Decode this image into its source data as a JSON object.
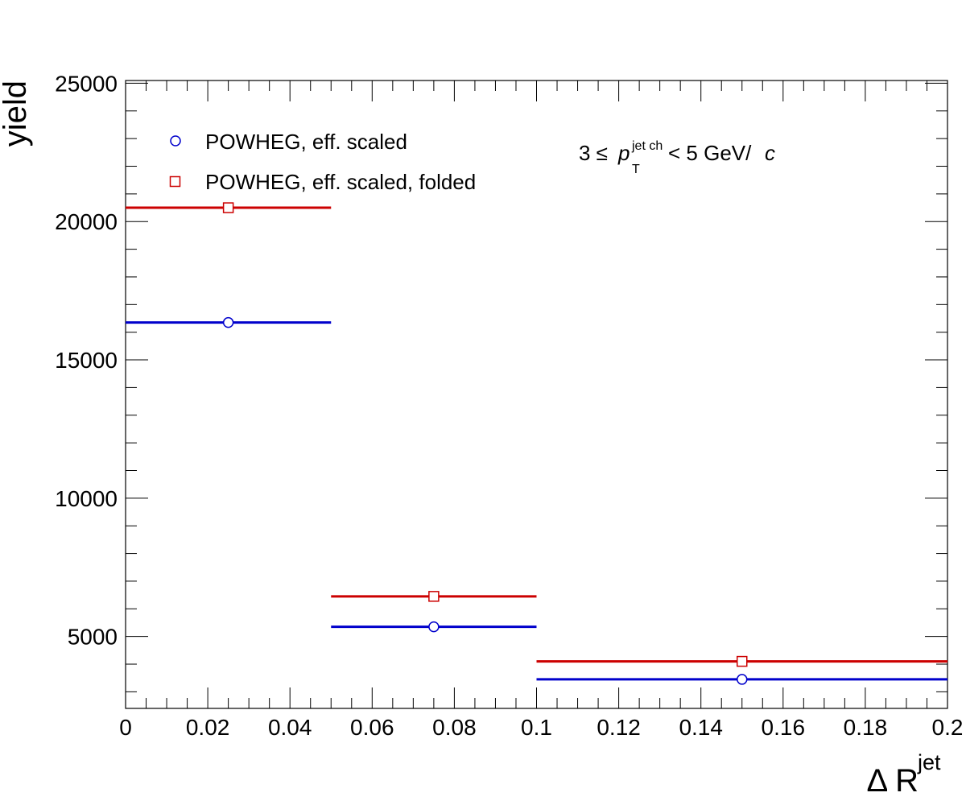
{
  "chart_data": {
    "type": "scatter",
    "xlabel": "Δ R",
    "xlabel_sup": "jet",
    "ylabel": "yield",
    "xlim": [
      0,
      0.2
    ],
    "ylim": [
      2400,
      25100
    ],
    "x_ticks": [
      "0",
      "0.02",
      "0.04",
      "0.06",
      "0.08",
      "0.1",
      "0.12",
      "0.14",
      "0.16",
      "0.18",
      "0.2"
    ],
    "y_ticks": [
      "5000",
      "10000",
      "15000",
      "20000",
      "25000"
    ],
    "legend_position": "top-left",
    "annotation": {
      "prefix": "3 ≤ ",
      "p": "p",
      "sup": "jet ch",
      "sub": "T",
      "suffix": " < 5 GeV/",
      "c": "c"
    },
    "series": [
      {
        "name": "POWHEG, eff. scaled",
        "color": "#0000cc",
        "marker": "open-circle",
        "points": [
          {
            "x": 0.025,
            "xlow": 0.0,
            "xhigh": 0.05,
            "y": 16350
          },
          {
            "x": 0.075,
            "xlow": 0.05,
            "xhigh": 0.1,
            "y": 5350
          },
          {
            "x": 0.15,
            "xlow": 0.1,
            "xhigh": 0.2,
            "y": 3450
          }
        ]
      },
      {
        "name": "POWHEG, eff. scaled, folded",
        "color": "#cc0000",
        "marker": "open-square",
        "points": [
          {
            "x": 0.025,
            "xlow": 0.0,
            "xhigh": 0.05,
            "y": 20500
          },
          {
            "x": 0.075,
            "xlow": 0.05,
            "xhigh": 0.1,
            "y": 6450
          },
          {
            "x": 0.15,
            "xlow": 0.1,
            "xhigh": 0.2,
            "y": 4100
          }
        ]
      }
    ]
  }
}
